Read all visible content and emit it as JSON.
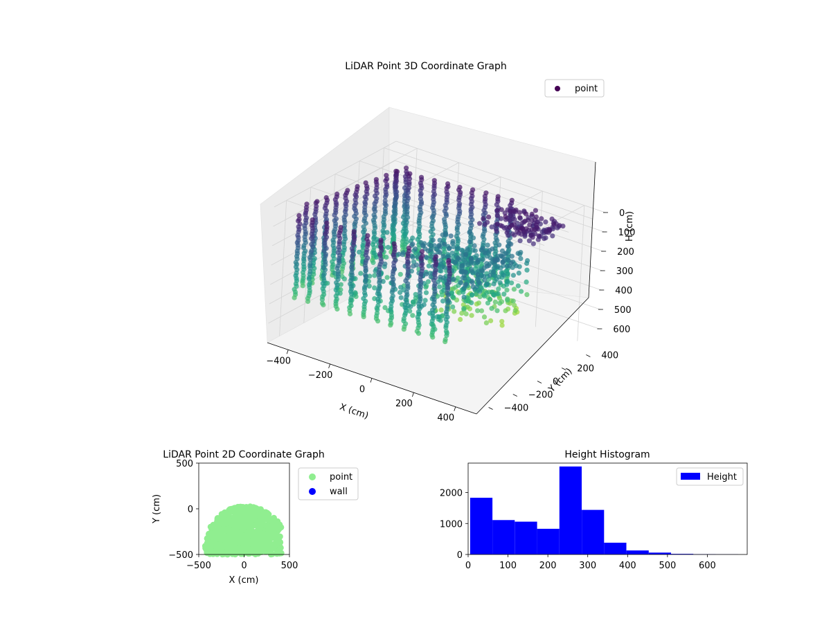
{
  "chart_data": [
    {
      "type": "scatter",
      "projection": "3d",
      "title": "LiDAR Point 3D Coordinate Graph",
      "xlabel": "X (cm)",
      "ylabel": "Y (cm)",
      "zlabel": "H (cm)",
      "xticks": [
        "−400",
        "−200",
        "0",
        "200",
        "400"
      ],
      "yticks": [
        "−400",
        "−200",
        "0",
        "200",
        "400"
      ],
      "zticks": [
        "0",
        "100",
        "200",
        "300",
        "400",
        "500",
        "600"
      ],
      "xlim": [
        -500,
        500
      ],
      "ylim": [
        -500,
        500
      ],
      "zlim": [
        0,
        700
      ],
      "z_inverted": true,
      "grid": true,
      "legend": {
        "entries": [
          "point"
        ],
        "position": "top-right"
      },
      "colormap": "viridis",
      "series": [
        {
          "name": "point"
        }
      ]
    },
    {
      "type": "scatter",
      "title": "LiDAR Point 2D Coordinate Graph",
      "xlabel": "X (cm)",
      "ylabel": "Y (cm)",
      "xticks": [
        "−500",
        "0",
        "500"
      ],
      "yticks": [
        "500",
        "0",
        "−500"
      ],
      "xlim": [
        -500,
        500
      ],
      "ylim": [
        -500,
        500
      ],
      "legend": {
        "entries": [
          "point",
          "wall"
        ],
        "position": "outside-right"
      },
      "series": [
        {
          "name": "point",
          "color": "#90ee90"
        },
        {
          "name": "wall",
          "color": "#0000ff"
        }
      ]
    },
    {
      "type": "bar",
      "subtype": "histogram",
      "title": "Height Histogram",
      "xticks": [
        "0",
        "100",
        "200",
        "300",
        "400",
        "500",
        "600"
      ],
      "yticks": [
        "0",
        "1000",
        "2000"
      ],
      "xlim": [
        0,
        700
      ],
      "ylim": [
        0,
        2950
      ],
      "bin_edges": [
        5,
        61,
        117,
        173,
        229,
        285,
        341,
        397,
        453,
        509,
        565,
        621,
        677
      ],
      "counts": [
        1830,
        1110,
        1060,
        830,
        2840,
        1440,
        380,
        130,
        60,
        20,
        10,
        5
      ],
      "color": "#0000ff",
      "legend": {
        "entries": [
          "Height"
        ],
        "position": "top-right"
      },
      "series": [
        {
          "name": "Height"
        }
      ]
    }
  ]
}
